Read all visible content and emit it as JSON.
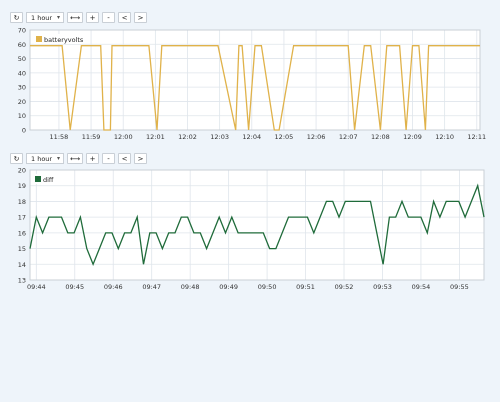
{
  "toolbar1": {
    "select": "1 hour",
    "buttons": [
      "↻",
      "⟷",
      "+",
      "-",
      "<",
      ">"
    ]
  },
  "toolbar2": {
    "select": "1 hour",
    "buttons": [
      "↻",
      "⟷",
      "+",
      "-",
      "<",
      ">"
    ]
  },
  "chart_data": [
    {
      "type": "line",
      "series": [
        {
          "name": "batteryvolts",
          "color": "#e0b24a"
        }
      ],
      "ylim": [
        0,
        70
      ],
      "yticks": [
        0,
        10,
        20,
        30,
        40,
        50,
        60,
        70
      ],
      "xticks": [
        "11:58",
        "11:59",
        "12:00",
        "12:01",
        "12:02",
        "12:03",
        "12:04",
        "12:05",
        "12:06",
        "12:07",
        "12:08",
        "12:09",
        "12:10",
        "12:11"
      ],
      "legend": "top-left",
      "grid": true,
      "x": [
        0,
        0.25,
        0.6,
        0.75,
        1.0,
        1.25,
        1.6,
        2.2,
        2.3,
        2.5,
        2.55,
        3.7,
        3.95,
        4.1,
        4.5,
        4.6,
        5.7,
        5.85,
        6.4,
        6.5,
        6.6,
        6.8,
        7.0,
        7.2,
        7.6,
        7.75,
        8.2,
        8.3,
        8.6,
        9.9,
        10.1,
        10.4,
        10.6,
        10.9,
        11.1,
        11.2,
        11.5,
        11.7,
        11.9,
        12.1,
        12.3,
        12.4,
        12.5,
        12.7,
        12.9,
        13.1,
        13.4,
        13.6,
        14.0
      ],
      "values": [
        59,
        59,
        59,
        59,
        59,
        0,
        59,
        59,
        0,
        0,
        59,
        59,
        0,
        59,
        59,
        59,
        59,
        59,
        0,
        59,
        59,
        0,
        59,
        59,
        0,
        0,
        59,
        59,
        59,
        59,
        0,
        59,
        59,
        0,
        59,
        59,
        59,
        0,
        59,
        59,
        0,
        59,
        59,
        59,
        59,
        59,
        59,
        59,
        59
      ]
    },
    {
      "type": "line",
      "series": [
        {
          "name": "diff",
          "color": "#1f6b3a"
        }
      ],
      "ylim": [
        13,
        20
      ],
      "yticks": [
        13,
        14,
        15,
        16,
        17,
        18,
        19,
        20
      ],
      "xticks": [
        "09:44",
        "09:45",
        "09:46",
        "09:47",
        "09:48",
        "09:49",
        "09:50",
        "09:51",
        "09:52",
        "09:53",
        "09:54",
        "09:55"
      ],
      "legend": "top-left",
      "grid": true,
      "values": [
        15,
        17,
        16,
        17,
        17,
        17,
        16,
        16,
        17,
        15,
        14,
        15,
        16,
        16,
        15,
        16,
        16,
        17,
        14,
        16,
        16,
        15,
        16,
        16,
        17,
        17,
        16,
        16,
        15,
        16,
        17,
        16,
        17,
        16,
        16,
        16,
        16,
        16,
        15,
        15,
        16,
        17,
        17,
        17,
        17,
        16,
        17,
        18,
        18,
        17,
        18,
        18,
        18,
        18,
        18,
        16,
        14,
        17,
        17,
        18,
        17,
        17,
        17,
        16,
        18,
        17,
        18,
        18,
        18,
        17,
        18,
        19,
        17
      ]
    }
  ]
}
